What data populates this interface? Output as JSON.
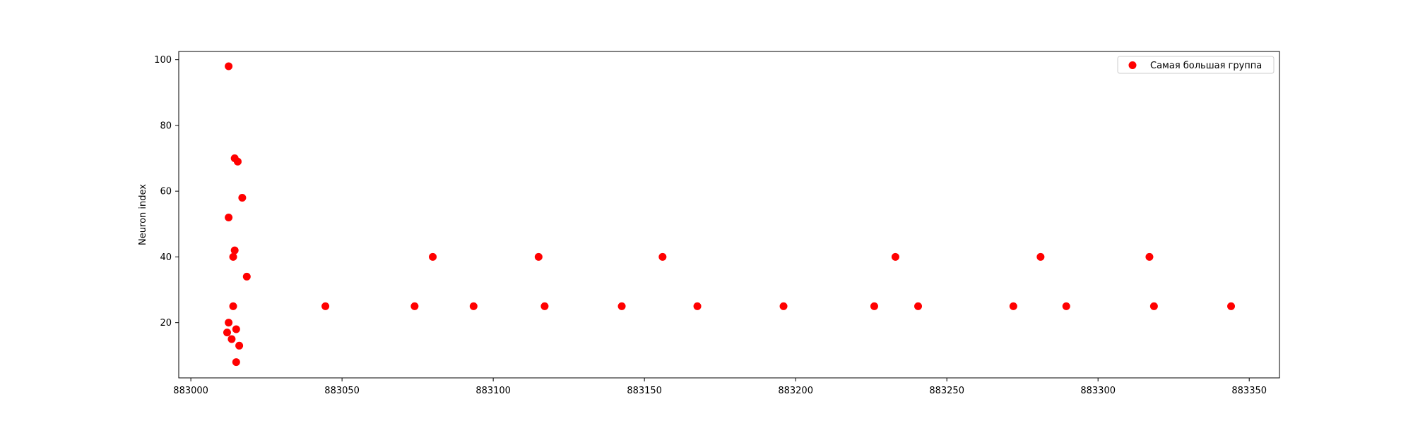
{
  "chart_data": {
    "type": "scatter",
    "title": "",
    "xlabel": "",
    "ylabel": "Neuron index",
    "xlim": [
      882996,
      883360
    ],
    "ylim": [
      3.2,
      102.5
    ],
    "x_ticks": [
      883000,
      883050,
      883100,
      883150,
      883200,
      883250,
      883300,
      883350
    ],
    "y_ticks": [
      20,
      40,
      60,
      80,
      100
    ],
    "grid": false,
    "legend_position": "top-right",
    "series": [
      {
        "name": "Самая большая группа",
        "color": "#ff0000",
        "marker": "circle",
        "points": [
          {
            "x": 883012.5,
            "y": 98
          },
          {
            "x": 883012.5,
            "y": 52
          },
          {
            "x": 883012.0,
            "y": 17
          },
          {
            "x": 883012.5,
            "y": 20
          },
          {
            "x": 883014.0,
            "y": 25
          },
          {
            "x": 883014.0,
            "y": 40
          },
          {
            "x": 883013.5,
            "y": 15
          },
          {
            "x": 883014.5,
            "y": 42
          },
          {
            "x": 883014.5,
            "y": 70
          },
          {
            "x": 883015.5,
            "y": 69
          },
          {
            "x": 883015.0,
            "y": 18
          },
          {
            "x": 883015.0,
            "y": 8
          },
          {
            "x": 883016.0,
            "y": 13
          },
          {
            "x": 883017.0,
            "y": 58
          },
          {
            "x": 883018.5,
            "y": 34
          },
          {
            "x": 883044.5,
            "y": 25
          },
          {
            "x": 883074.0,
            "y": 25
          },
          {
            "x": 883080.0,
            "y": 40
          },
          {
            "x": 883093.5,
            "y": 25
          },
          {
            "x": 883115.0,
            "y": 40
          },
          {
            "x": 883117.0,
            "y": 25
          },
          {
            "x": 883142.5,
            "y": 25
          },
          {
            "x": 883156.0,
            "y": 40
          },
          {
            "x": 883167.5,
            "y": 25
          },
          {
            "x": 883196.0,
            "y": 25
          },
          {
            "x": 883226.0,
            "y": 25
          },
          {
            "x": 883233.0,
            "y": 40
          },
          {
            "x": 883240.5,
            "y": 25
          },
          {
            "x": 883272.0,
            "y": 25
          },
          {
            "x": 883281.0,
            "y": 40
          },
          {
            "x": 883289.5,
            "y": 25
          },
          {
            "x": 883317.0,
            "y": 40
          },
          {
            "x": 883318.5,
            "y": 25
          },
          {
            "x": 883344.0,
            "y": 25
          }
        ]
      }
    ]
  }
}
